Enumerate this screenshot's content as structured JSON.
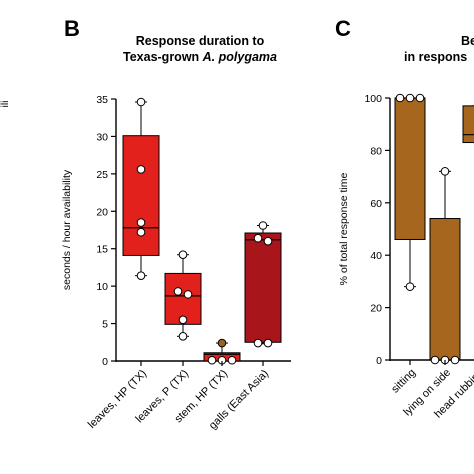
{
  "panels": {
    "left_fragment_text": "ili",
    "B": {
      "letter": "B",
      "title_line1": "Response duration to",
      "title_line2_plain": "Texas-grown ",
      "title_line2_italic": "A. polygama"
    },
    "C": {
      "letter": "C",
      "title_line1": "Be",
      "title_line2": "in respons"
    }
  },
  "chart_data": [
    {
      "type": "box",
      "panel": "B",
      "title": "Response duration to Texas-grown A. polygama",
      "xlabel": "",
      "ylabel": "seconds / hour availability",
      "ylim": [
        0,
        35
      ],
      "yticks": [
        0,
        5,
        10,
        15,
        20,
        25,
        30,
        35
      ],
      "categories": [
        "leaves, HP (TX)",
        "leaves, P (TX)",
        "stem, HP (TX)",
        "galls (East Asia)"
      ],
      "boxes": [
        {
          "category": "leaves, HP (TX)",
          "color": "#e3211c",
          "whisker_low": 11.4,
          "q1": 14.1,
          "median": 17.8,
          "q3": 30.1,
          "whisker_high": 34.6,
          "points": [
            34.6,
            25.6,
            18.5,
            17.2,
            11.4
          ]
        },
        {
          "category": "leaves, P (TX)",
          "color": "#e3211c",
          "whisker_low": 3.3,
          "q1": 4.9,
          "median": 8.7,
          "q3": 11.7,
          "whisker_high": 14.2,
          "points": [
            14.2,
            9.3,
            8.9,
            5.5,
            3.3
          ]
        },
        {
          "category": "stem, HP (TX)",
          "color": "#e3211c",
          "whisker_low": 0,
          "q1": 0,
          "median": 0.9,
          "q3": 1.1,
          "whisker_high": 2.4,
          "points": [
            2.4,
            0.1,
            0.1,
            0.1
          ],
          "highlight_point_color": "#9a6324"
        },
        {
          "category": "galls (East Asia)",
          "color": "#a8151a",
          "whisker_low": 2.3,
          "q1": 2.5,
          "median": 16.2,
          "q3": 17.1,
          "whisker_high": 18.1,
          "points": [
            18.1,
            16.4,
            16.0,
            2.4,
            2.4
          ]
        }
      ]
    },
    {
      "type": "box",
      "panel": "C",
      "title": "Be… in respons…",
      "xlabel": "",
      "ylabel": "% of total response time",
      "ylim": [
        0,
        100
      ],
      "yticks": [
        0,
        20,
        40,
        60,
        80,
        100
      ],
      "categories": [
        "sitting",
        "lying on side",
        "head rubbing"
      ],
      "boxes": [
        {
          "category": "sitting",
          "color": "#a6661d",
          "whisker_low": 28,
          "q1": 46,
          "median": 100,
          "q3": 100,
          "whisker_high": 100,
          "points": [
            100,
            100,
            100,
            28
          ]
        },
        {
          "category": "lying on side",
          "color": "#a6661d",
          "whisker_low": 0,
          "q1": 0,
          "median": 0,
          "q3": 54,
          "whisker_high": 72,
          "points": [
            72,
            0,
            0,
            0
          ]
        },
        {
          "category": "head rubbing",
          "color": "#a6661d",
          "whisker_low": 83,
          "q1": 83,
          "median": 86,
          "q3": 97,
          "whisker_high": 97,
          "points": []
        }
      ]
    }
  ]
}
